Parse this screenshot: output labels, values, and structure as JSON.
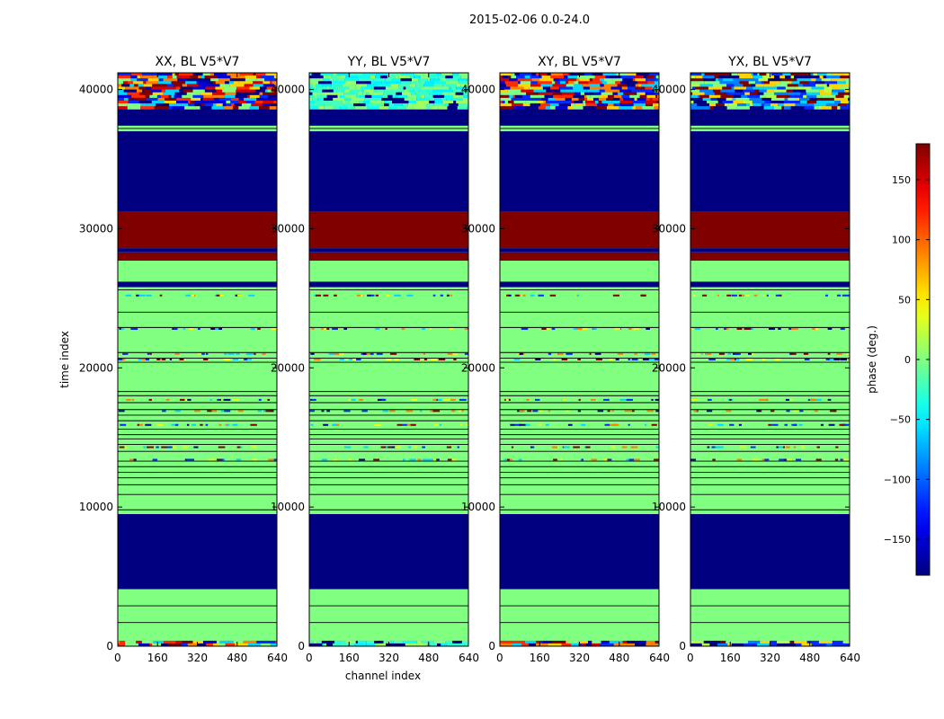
{
  "suptitle": "2015-02-06 0.0-24.0",
  "chart_data": {
    "type": "heatmap",
    "xlabel": "channel index",
    "ylabel": "time index",
    "xlim": [
      0,
      640
    ],
    "ylim": [
      0,
      41200
    ],
    "xticks": [
      0,
      160,
      320,
      480,
      640
    ],
    "yticks": [
      0,
      10000,
      20000,
      30000,
      40000
    ],
    "panels": [
      {
        "title": "XX, BL V5*V7",
        "upper_noise": "wild"
      },
      {
        "title": "YY, BL V5*V7",
        "upper_noise": "cyan"
      },
      {
        "title": "XY, BL V5*V7",
        "upper_noise": "wild"
      },
      {
        "title": "YX, BL V5*V7",
        "upper_noise": "mixed"
      }
    ],
    "bands": [
      {
        "from": 0,
        "to": 400,
        "phase": "noise"
      },
      {
        "from": 400,
        "to": 4100,
        "phase": 0
      },
      {
        "from": 4100,
        "to": 9500,
        "phase": -180
      },
      {
        "from": 9500,
        "to": 25800,
        "phase": 0
      },
      {
        "from": 25800,
        "to": 26200,
        "phase": -180
      },
      {
        "from": 26200,
        "to": 27700,
        "phase": 0
      },
      {
        "from": 27700,
        "to": 28300,
        "phase": 180
      },
      {
        "from": 28300,
        "to": 28600,
        "phase": -180
      },
      {
        "from": 28600,
        "to": 31200,
        "phase": 180
      },
      {
        "from": 31200,
        "to": 37000,
        "phase": -180
      },
      {
        "from": 37000,
        "to": 37400,
        "phase": 0
      },
      {
        "from": 37400,
        "to": 38600,
        "phase": -180
      },
      {
        "from": 38600,
        "to": 41200,
        "phase": "noise"
      }
    ],
    "lines": [
      1700,
      2900,
      9800,
      10900,
      11600,
      12100,
      12500,
      12900,
      13300,
      14000,
      14500,
      14900,
      15200,
      15600,
      16200,
      16600,
      17000,
      17500,
      18000,
      18300,
      20400,
      20700,
      21100,
      22900,
      24000,
      25600,
      37200
    ],
    "sparse_noise_rows": [
      13400,
      14300,
      15900,
      16900,
      17700,
      20600,
      21000,
      22800,
      25200
    ],
    "colorbar": {
      "label": "phase (deg.)",
      "range": [
        -180,
        180
      ],
      "ticks": [
        150,
        100,
        50,
        0,
        -50,
        -100,
        -150
      ],
      "tick_labels": [
        "150",
        "100",
        "50",
        "0",
        "−50",
        "−100",
        "−150"
      ],
      "colormap": "jet"
    }
  }
}
